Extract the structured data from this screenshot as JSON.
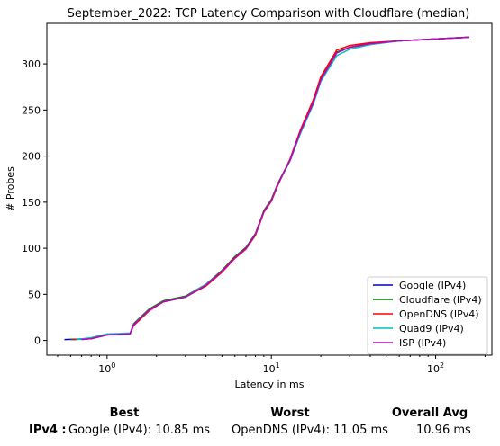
{
  "chart_data": {
    "type": "line",
    "title": "September_2022: TCP Latency Comparison with Cloudflare (median)",
    "xlabel": "Latency in ms",
    "ylabel": "# Probes",
    "x_scale": "log",
    "xlim": [
      0.43,
      220
    ],
    "ylim": [
      -16,
      344
    ],
    "x_ticks": [
      1,
      10,
      100
    ],
    "x_tick_labels": [
      "10^0",
      "10^1",
      "10^2"
    ],
    "y_ticks": [
      0,
      50,
      100,
      150,
      200,
      250,
      300
    ],
    "legend_position": "lower-right",
    "grid": false,
    "series": [
      {
        "name": "Google (IPv4)",
        "color": "#0000cc",
        "x": [
          0.55,
          0.8,
          1.0,
          1.38,
          1.45,
          1.8,
          2.2,
          3.0,
          4.0,
          5.0,
          6.0,
          7.0,
          8.0,
          9.0,
          10.0,
          11.0,
          13.0,
          15.0,
          18.0,
          20.0,
          25.0,
          30.0,
          40.0,
          60.0,
          100.0,
          160.0
        ],
        "y": [
          1,
          2,
          6,
          7,
          17,
          33,
          42,
          47,
          60,
          75,
          90,
          100,
          115,
          140,
          152,
          170,
          195,
          225,
          258,
          283,
          312,
          318,
          322,
          325,
          327,
          329
        ]
      },
      {
        "name": "Cloudflare (IPv4)",
        "color": "#008000",
        "x": [
          0.6,
          0.8,
          1.0,
          1.38,
          1.45,
          1.8,
          2.2,
          3.0,
          4.0,
          5.0,
          6.0,
          7.0,
          8.0,
          9.0,
          10.0,
          11.0,
          13.0,
          15.0,
          18.0,
          20.0,
          25.0,
          30.0,
          40.0,
          60.0,
          100.0,
          160.0
        ],
        "y": [
          1,
          2,
          6,
          7,
          18,
          34,
          43,
          48,
          61,
          76,
          91,
          101,
          116,
          141,
          153,
          171,
          196,
          226,
          259,
          284,
          313,
          318,
          322,
          325,
          327,
          329
        ]
      },
      {
        "name": "OpenDNS (IPv4)",
        "color": "#ff0000",
        "x": [
          0.62,
          0.8,
          1.0,
          1.38,
          1.45,
          1.8,
          2.2,
          3.0,
          4.0,
          5.0,
          6.0,
          7.0,
          8.0,
          9.0,
          10.0,
          11.0,
          13.0,
          15.0,
          18.0,
          20.0,
          25.0,
          30.0,
          40.0,
          60.0,
          100.0,
          160.0
        ],
        "y": [
          1,
          2,
          6,
          7,
          16,
          32,
          42,
          47,
          59,
          74,
          89,
          99,
          114,
          139,
          151,
          169,
          197,
          228,
          261,
          286,
          315,
          320,
          323,
          325,
          327,
          329
        ]
      },
      {
        "name": "Quad9 (IPv4)",
        "color": "#00bfbf",
        "x": [
          0.65,
          0.8,
          1.0,
          1.38,
          1.45,
          1.8,
          2.2,
          3.0,
          4.0,
          5.0,
          6.0,
          7.0,
          8.0,
          9.0,
          10.0,
          11.0,
          13.0,
          15.0,
          18.0,
          20.0,
          25.0,
          30.0,
          40.0,
          60.0,
          100.0,
          160.0
        ],
        "y": [
          1,
          3,
          7,
          8,
          17,
          33,
          42,
          47,
          61,
          75,
          90,
          100,
          115,
          140,
          152,
          170,
          195,
          224,
          256,
          281,
          309,
          316,
          321,
          325,
          327,
          329
        ]
      },
      {
        "name": "ISP (IPv4)",
        "color": "#bf00bf",
        "x": [
          0.7,
          0.8,
          1.0,
          1.38,
          1.45,
          1.8,
          2.2,
          3.0,
          4.0,
          5.0,
          6.0,
          7.0,
          8.0,
          9.0,
          10.0,
          11.0,
          13.0,
          15.0,
          18.0,
          20.0,
          25.0,
          30.0,
          40.0,
          60.0,
          100.0,
          160.0
        ],
        "y": [
          1,
          2,
          6,
          7,
          17,
          33,
          42,
          47,
          60,
          75,
          90,
          100,
          115,
          140,
          152,
          170,
          196,
          226,
          258,
          283,
          312,
          318,
          322,
          325,
          327,
          329
        ]
      }
    ]
  },
  "summary": {
    "best_header": "Best",
    "worst_header": "Worst",
    "avg_header": "Overall Avg",
    "row_label": "IPv4 :",
    "best_value": "Google (IPv4): 10.85 ms",
    "worst_value": "OpenDNS (IPv4): 11.05 ms",
    "avg_value": "10.96 ms"
  }
}
